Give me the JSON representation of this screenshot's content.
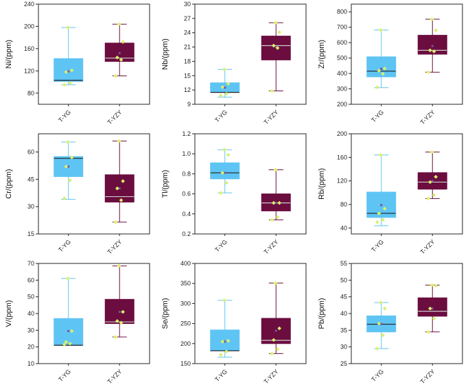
{
  "colors": {
    "yg_fill": "#5ec4f4",
    "yg_line": "#5ec4f4",
    "yzy_fill": "#6b0d3e",
    "yzy_line": "#6b0d3e",
    "median_yg": "#222222",
    "median_yzy": "#cccccc",
    "point": "#d9f06a",
    "mean": "#7a4fa0"
  },
  "chart_data": [
    {
      "type": "box",
      "ylabel": "Ni/(ppm)",
      "ylim": [
        60,
        240
      ],
      "yticks": [
        80,
        120,
        160,
        200,
        240
      ],
      "categories": [
        "T-YG",
        "T-YZY"
      ],
      "series": [
        {
          "name": "T-YG",
          "min": 95,
          "q1": 101,
          "median": 103,
          "q3": 142,
          "max": 198,
          "mean": 119,
          "points": [
            95,
            98,
            118,
            121,
            198
          ]
        },
        {
          "name": "T-YZY",
          "min": 111,
          "q1": 137,
          "median": 143,
          "q3": 170,
          "max": 204,
          "mean": 152,
          "points": [
            111,
            140,
            144,
            172,
            204
          ]
        }
      ]
    },
    {
      "type": "box",
      "ylabel": "Nb/(ppm)",
      "ylim": [
        9,
        30
      ],
      "yticks": [
        9,
        12,
        15,
        18,
        21,
        24,
        27,
        30
      ],
      "categories": [
        "T-YG",
        "T-YZY"
      ],
      "series": [
        {
          "name": "T-YG",
          "min": 10.5,
          "q1": 11.5,
          "median": 11.5,
          "q3": 13.5,
          "max": 16.3,
          "mean": 12.5,
          "points": [
            10.8,
            11.2,
            12.6,
            13.3,
            16.3
          ]
        },
        {
          "name": "T-YZY",
          "min": 11.8,
          "q1": 18.3,
          "median": 21.3,
          "q3": 23.3,
          "max": 26.1,
          "mean": 21.0,
          "points": [
            11.8,
            20.8,
            21.3,
            24.1,
            26.1
          ]
        }
      ]
    },
    {
      "type": "box",
      "ylabel": "Zr/(ppm)",
      "ylim": [
        200,
        850
      ],
      "yticks": [
        200,
        300,
        400,
        500,
        600,
        700,
        800
      ],
      "categories": [
        "T-YG",
        "T-YZY"
      ],
      "series": [
        {
          "name": "T-YG",
          "min": 308,
          "q1": 378,
          "median": 415,
          "q3": 508,
          "max": 682,
          "mean": 430,
          "points": [
            310,
            398,
            418,
            432,
            682
          ]
        },
        {
          "name": "T-YZY",
          "min": 408,
          "q1": 525,
          "median": 550,
          "q3": 648,
          "max": 752,
          "mean": 578,
          "points": [
            408,
            543,
            550,
            680,
            752
          ]
        }
      ]
    },
    {
      "type": "box",
      "ylabel": "Cr/(ppm)",
      "ylim": [
        15,
        70
      ],
      "yticks": [
        15,
        30,
        45,
        60
      ],
      "categories": [
        "T-YG",
        "T-YZY"
      ],
      "series": [
        {
          "name": "T-YG",
          "min": 34,
          "q1": 46.5,
          "median": 56.5,
          "q3": 57.5,
          "max": 65.5,
          "mean": 52,
          "points": [
            34.5,
            44.5,
            52,
            57,
            65.5
          ]
        },
        {
          "name": "T-YZY",
          "min": 21.5,
          "q1": 32.5,
          "median": 35.5,
          "q3": 47.5,
          "max": 66,
          "mean": 40,
          "points": [
            21.5,
            33.5,
            40,
            44,
            66
          ]
        }
      ]
    },
    {
      "type": "box",
      "ylabel": "Tl/(ppm)",
      "ylim": [
        0.2,
        1.2
      ],
      "yticks": [
        0.2,
        0.4,
        0.6,
        0.8,
        1.0,
        1.2
      ],
      "categories": [
        "T-YG",
        "T-YZY"
      ],
      "series": [
        {
          "name": "T-YG",
          "min": 0.61,
          "q1": 0.75,
          "median": 0.81,
          "q3": 0.91,
          "max": 1.04,
          "mean": 0.81,
          "points": [
            0.61,
            0.71,
            0.81,
            0.99,
            1.04
          ]
        },
        {
          "name": "T-YZY",
          "min": 0.34,
          "q1": 0.43,
          "median": 0.51,
          "q3": 0.6,
          "max": 0.84,
          "mean": 0.51,
          "points": [
            0.34,
            0.37,
            0.51,
            0.51,
            0.84
          ]
        }
      ]
    },
    {
      "type": "box",
      "ylabel": "Rb/(ppm)",
      "ylim": [
        30,
        200
      ],
      "yticks": [
        40,
        80,
        120,
        160,
        200
      ],
      "categories": [
        "T-YG",
        "T-YZY"
      ],
      "series": [
        {
          "name": "T-YG",
          "min": 44,
          "q1": 58,
          "median": 65,
          "q3": 101,
          "max": 164,
          "mean": 79,
          "points": [
            50,
            54,
            65,
            73,
            164
          ]
        },
        {
          "name": "T-YZY",
          "min": 90,
          "q1": 106,
          "median": 118,
          "q3": 134,
          "max": 169,
          "mean": 120,
          "points": [
            90,
            96,
            118,
            127,
            169
          ]
        }
      ]
    },
    {
      "type": "box",
      "ylabel": "V/(ppm)",
      "ylim": [
        10,
        70
      ],
      "yticks": [
        10,
        20,
        30,
        40,
        50,
        60,
        70
      ],
      "categories": [
        "T-YG",
        "T-YZY"
      ],
      "series": [
        {
          "name": "T-YG",
          "min": 21,
          "q1": 21,
          "median": 21,
          "q3": 37,
          "max": 61,
          "mean": 29.5,
          "points": [
            21.5,
            22,
            23,
            29.5,
            61
          ]
        },
        {
          "name": "T-YZY",
          "min": 26,
          "q1": 34,
          "median": 35,
          "q3": 48.5,
          "max": 68.5,
          "mean": 41,
          "points": [
            26,
            34.5,
            35.5,
            41,
            68.5
          ]
        }
      ]
    },
    {
      "type": "box",
      "ylabel": "Se/(ppm)",
      "ylim": [
        150,
        400
      ],
      "yticks": [
        150,
        200,
        250,
        300,
        350,
        400
      ],
      "categories": [
        "T-YG",
        "T-YZY"
      ],
      "series": [
        {
          "name": "T-YG",
          "min": 166,
          "q1": 182,
          "median": 182,
          "q3": 234,
          "max": 308,
          "mean": 205,
          "points": [
            172,
            180,
            205,
            207,
            308
          ]
        },
        {
          "name": "T-YZY",
          "min": 175,
          "q1": 200,
          "median": 208,
          "q3": 263,
          "max": 351,
          "mean": 232,
          "points": [
            175,
            186,
            209,
            238,
            351
          ]
        }
      ]
    },
    {
      "type": "box",
      "ylabel": "Pb/(ppm)",
      "ylim": [
        25,
        55
      ],
      "yticks": [
        25,
        30,
        35,
        40,
        45,
        50,
        55
      ],
      "categories": [
        "T-YG",
        "T-YZY"
      ],
      "series": [
        {
          "name": "T-YG",
          "min": 29.5,
          "q1": 34.5,
          "median": 36.8,
          "q3": 39.3,
          "max": 43.3,
          "mean": 36.9,
          "points": [
            29.5,
            33.5,
            37,
            41.5,
            43.3
          ]
        },
        {
          "name": "T-YZY",
          "min": 34.5,
          "q1": 39.2,
          "median": 40.7,
          "q3": 44.7,
          "max": 48.5,
          "mean": 41.5,
          "points": [
            34.5,
            38.5,
            41.5,
            48.3,
            48.5
          ]
        }
      ]
    }
  ]
}
